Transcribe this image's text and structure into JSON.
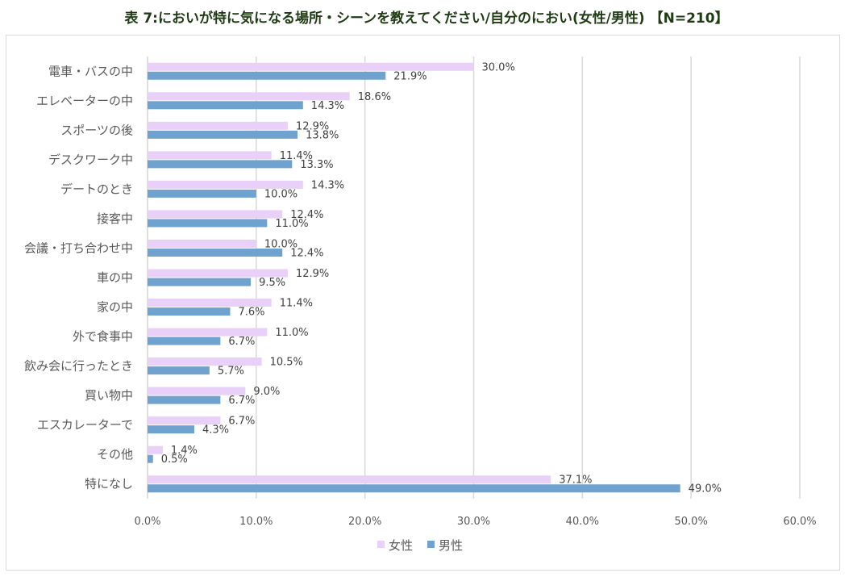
{
  "title": "表 7:においが特に気になる場所・シーンを教えてください/自分のにおい(女性/男性) 【N=210】",
  "chart_data": {
    "type": "bar",
    "orientation": "horizontal",
    "categories": [
      "電車・バスの中",
      "エレベーターの中",
      "スポーツの後",
      "デスクワーク中",
      "デートのとき",
      "接客中",
      "会議・打ち合わせ中",
      "車の中",
      "家の中",
      "外で食事中",
      "飲み会に行ったとき",
      "買い物中",
      "エスカレーターで",
      "その他",
      "特になし"
    ],
    "series": [
      {
        "name": "女性",
        "color": "#e9d0f8",
        "values": [
          30.0,
          18.6,
          12.9,
          11.4,
          14.3,
          12.4,
          10.0,
          12.9,
          11.4,
          11.0,
          10.5,
          9.0,
          6.7,
          1.4,
          37.1
        ],
        "labels": [
          "30.0%",
          "18.6%",
          "12.9%",
          "11.4%",
          "14.3%",
          "12.4%",
          "10.0%",
          "12.9%",
          "11.4%",
          "11.0%",
          "10.5%",
          "9.0%",
          "6.7%",
          "1.4%",
          "37.1%"
        ]
      },
      {
        "name": "男性",
        "color": "#6fa2ce",
        "values": [
          21.9,
          14.3,
          13.8,
          13.3,
          10.0,
          11.0,
          12.4,
          9.5,
          7.6,
          6.7,
          5.7,
          6.7,
          4.3,
          0.5,
          49.0
        ],
        "labels": [
          "21.9%",
          "14.3%",
          "13.8%",
          "13.3%",
          "10.0%",
          "11.0%",
          "12.4%",
          "9.5%",
          "7.6%",
          "6.7%",
          "5.7%",
          "6.7%",
          "4.3%",
          "0.5%",
          "49.0%"
        ]
      }
    ],
    "xlim": [
      0,
      60
    ],
    "x_ticks": [
      "0.0%",
      "10.0%",
      "20.0%",
      "30.0%",
      "40.0%",
      "50.0%",
      "60.0%"
    ],
    "grid": true,
    "legend_position": "bottom"
  }
}
